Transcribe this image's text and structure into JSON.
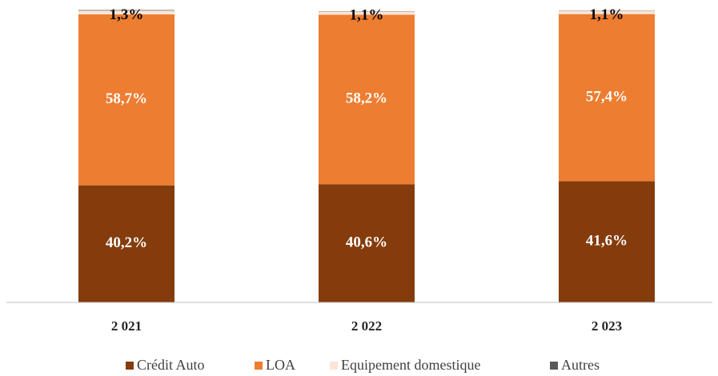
{
  "chart_data": {
    "type": "stacked_bar",
    "categories": [
      "2 021",
      "2 022",
      "2 023"
    ],
    "ylim": [
      0,
      100
    ],
    "series": [
      {
        "name": "Crédit Auto",
        "color": "#843c0c",
        "values": [
          40.2,
          40.6,
          41.6
        ],
        "value_labels": [
          "40,2%",
          "40,6%",
          "41,6%"
        ]
      },
      {
        "name": "LOA",
        "color": "#ed7d31",
        "values": [
          58.7,
          58.2,
          57.4
        ],
        "value_labels": [
          "58,7%",
          "58,2%",
          "57,4%"
        ]
      },
      {
        "name": "Equipement domestique",
        "color": "#fbe5d6",
        "values": [
          1.3,
          1.1,
          1.1
        ],
        "value_labels": [
          "1,3%",
          "1,1%",
          "1,1%"
        ]
      },
      {
        "name": "Autres",
        "color": "#595959",
        "values": [
          0.2,
          0.1,
          0.1
        ]
      }
    ],
    "legend": "bottom"
  }
}
